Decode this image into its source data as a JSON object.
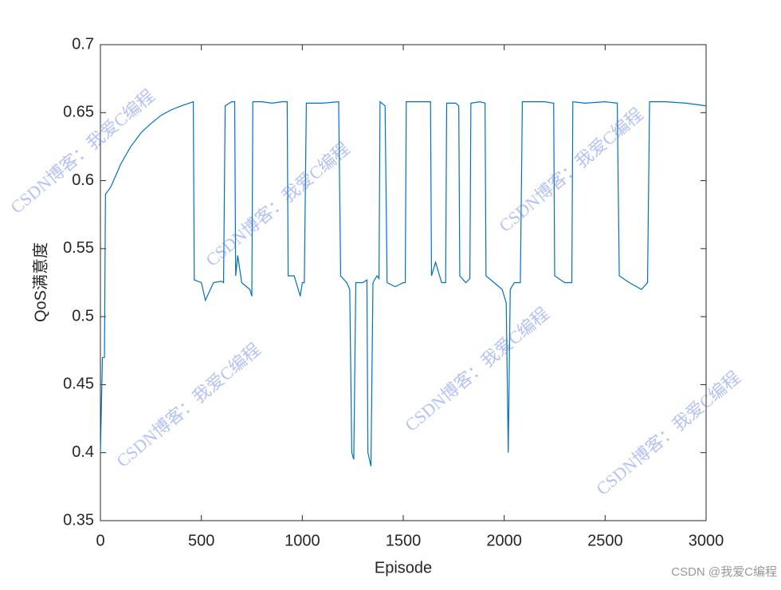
{
  "chart_data": {
    "type": "line",
    "xlabel": "Episode",
    "ylabel": "QoS满意度",
    "watermark": "CSDN博客：我爱C编程",
    "footer": "CSDN @我爱C编程",
    "x": [
      0,
      10,
      20,
      25,
      50,
      80,
      100,
      150,
      200,
      250,
      300,
      350,
      400,
      440,
      460,
      465,
      500,
      520,
      560,
      600,
      610,
      618,
      650,
      665,
      670,
      680,
      700,
      740,
      750,
      755,
      800,
      850,
      900,
      925,
      930,
      960,
      990,
      1000,
      1010,
      1020,
      1100,
      1180,
      1190,
      1220,
      1235,
      1245,
      1255,
      1265,
      1300,
      1320,
      1325,
      1340,
      1350,
      1370,
      1380,
      1385,
      1410,
      1420,
      1460,
      1500,
      1510,
      1515,
      1550,
      1600,
      1635,
      1640,
      1660,
      1690,
      1710,
      1715,
      1760,
      1775,
      1780,
      1810,
      1830,
      1835,
      1880,
      1905,
      1910,
      1950,
      1990,
      2010,
      2020,
      2030,
      2050,
      2080,
      2090,
      2150,
      2200,
      2245,
      2250,
      2300,
      2335,
      2340,
      2400,
      2500,
      2560,
      2570,
      2620,
      2680,
      2710,
      2720,
      2800,
      2900,
      3000
    ],
    "series": [
      {
        "name": "QoS",
        "color": "#0072bd",
        "values": [
          0.4,
          0.47,
          0.47,
          0.59,
          0.595,
          0.605,
          0.612,
          0.625,
          0.635,
          0.642,
          0.648,
          0.652,
          0.655,
          0.657,
          0.658,
          0.527,
          0.525,
          0.512,
          0.525,
          0.526,
          0.525,
          0.655,
          0.658,
          0.658,
          0.53,
          0.545,
          0.525,
          0.52,
          0.515,
          0.658,
          0.658,
          0.657,
          0.658,
          0.658,
          0.53,
          0.53,
          0.515,
          0.525,
          0.525,
          0.657,
          0.657,
          0.658,
          0.53,
          0.525,
          0.52,
          0.4,
          0.395,
          0.525,
          0.525,
          0.527,
          0.4,
          0.39,
          0.525,
          0.53,
          0.528,
          0.658,
          0.655,
          0.525,
          0.522,
          0.525,
          0.525,
          0.658,
          0.658,
          0.658,
          0.658,
          0.53,
          0.54,
          0.525,
          0.525,
          0.657,
          0.657,
          0.655,
          0.53,
          0.525,
          0.528,
          0.657,
          0.658,
          0.657,
          0.53,
          0.525,
          0.52,
          0.51,
          0.4,
          0.52,
          0.525,
          0.525,
          0.658,
          0.658,
          0.658,
          0.657,
          0.53,
          0.525,
          0.525,
          0.658,
          0.657,
          0.658,
          0.657,
          0.53,
          0.525,
          0.52,
          0.525,
          0.658,
          0.658,
          0.657,
          0.655
        ]
      }
    ],
    "xlim": [
      0,
      3000
    ],
    "xticks": [
      0,
      500,
      1000,
      1500,
      2000,
      2500,
      3000
    ],
    "ylim": [
      0.35,
      0.7
    ],
    "yticks": [
      0.35,
      0.4,
      0.45,
      0.5,
      0.55,
      0.6,
      0.65,
      0.7
    ]
  }
}
